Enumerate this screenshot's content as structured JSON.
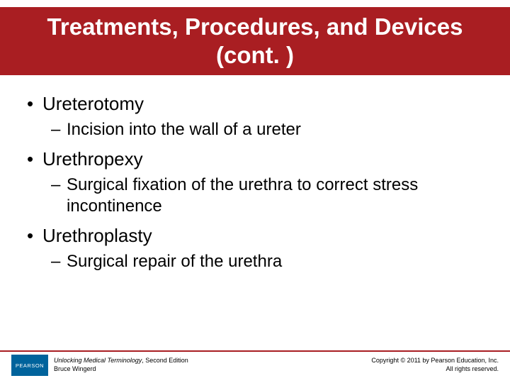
{
  "colors": {
    "title_band_bg": "#a91e22",
    "title_text": "#ffffff",
    "body_text": "#000000",
    "footer_rule": "#a91e22",
    "pearson_logo_bg": "#00639c",
    "background": "#ffffff"
  },
  "title": "Treatments, Procedures, and Devices (cont. )",
  "bullets": [
    {
      "term": "Ureterotomy",
      "definition": "Incision into the wall of a ureter"
    },
    {
      "term": "Urethropexy",
      "definition": "Surgical fixation of the urethra to correct stress incontinence"
    },
    {
      "term": "Urethroplasty",
      "definition": "Surgical repair of the urethra"
    }
  ],
  "footer": {
    "logo_text": "PEARSON",
    "book_title": "Unlocking Medical Terminology",
    "edition": ", Second Edition",
    "author": "Bruce Wingerd",
    "copyright_line1": "Copyright © 2011 by Pearson Education, Inc.",
    "copyright_line2": "All rights reserved."
  }
}
